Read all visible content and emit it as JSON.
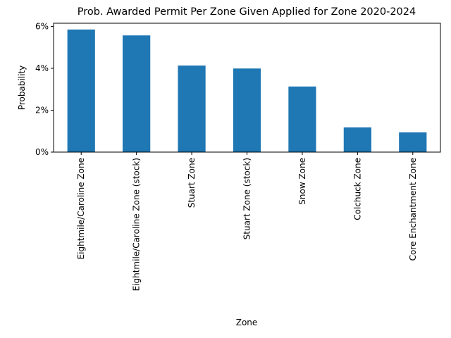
{
  "chart_data": {
    "type": "bar",
    "title": "Prob. Awarded Permit Per Zone Given Applied for Zone 2020-2024",
    "xlabel": "Zone",
    "ylabel": "Probability",
    "categories": [
      "Eightmile/Caroline Zone",
      "Eightmile/Caroline Zone (stock)",
      "Stuart  Zone",
      "Stuart Zone (stock)",
      "Snow Zone",
      "Colchuck Zone",
      "Core Enchantment Zone"
    ],
    "values": [
      0.0585,
      0.0557,
      0.0413,
      0.0399,
      0.0313,
      0.0118,
      0.0094
    ],
    "ylim": [
      0,
      0.0615
    ],
    "yticks": [
      {
        "value": 0,
        "label": "0%"
      },
      {
        "value": 0.02,
        "label": "2%"
      },
      {
        "value": 0.04,
        "label": "4%"
      },
      {
        "value": 0.06,
        "label": "6%"
      }
    ],
    "bar_color": "#1f77b4",
    "grid": false,
    "legend": "none"
  }
}
